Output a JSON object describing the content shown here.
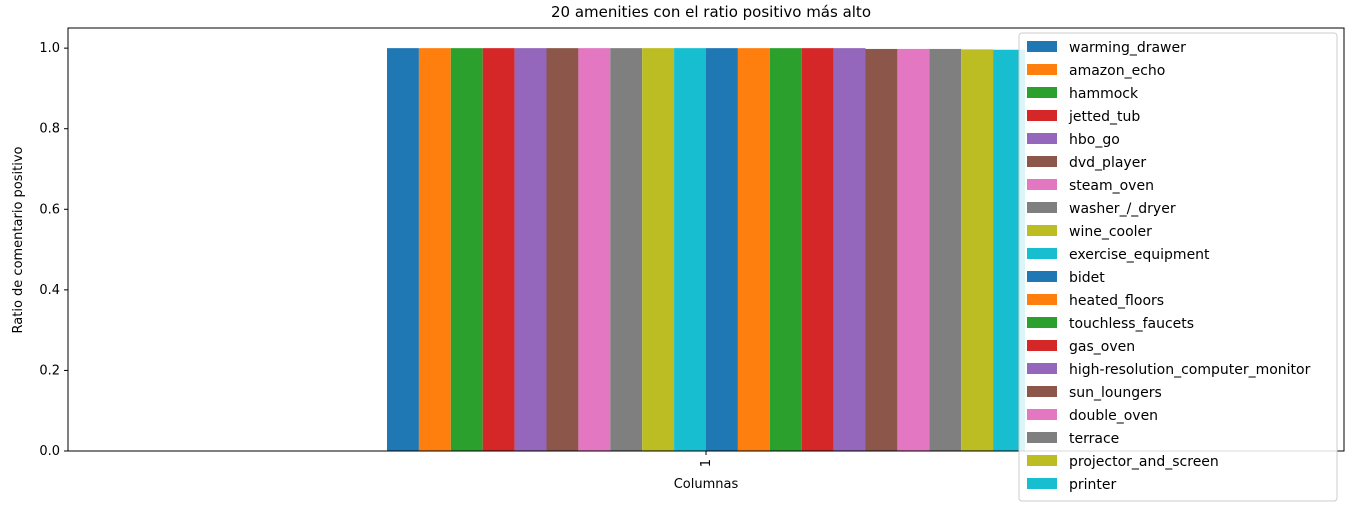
{
  "chart_data": {
    "type": "bar",
    "title": "20 amenities con el ratio positivo más alto",
    "xlabel": "Columnas",
    "ylabel": "Ratio de comentario positivo",
    "categories": [
      "1"
    ],
    "ylim": [
      0,
      1.05
    ],
    "yticks": [
      "0.0",
      "0.2",
      "0.4",
      "0.6",
      "0.8",
      "1.0"
    ],
    "grid": false,
    "legend_position": "upper-right",
    "series": [
      {
        "name": "warming_drawer",
        "values": [
          1.0
        ],
        "color": "#1f77b4"
      },
      {
        "name": "amazon_echo",
        "values": [
          1.0
        ],
        "color": "#ff7f0e"
      },
      {
        "name": "hammock",
        "values": [
          1.0
        ],
        "color": "#2ca02c"
      },
      {
        "name": "jetted_tub",
        "values": [
          1.0
        ],
        "color": "#d62728"
      },
      {
        "name": "hbo_go",
        "values": [
          1.0
        ],
        "color": "#9467bd"
      },
      {
        "name": "dvd_player",
        "values": [
          1.0
        ],
        "color": "#8c564b"
      },
      {
        "name": "steam_oven",
        "values": [
          1.0
        ],
        "color": "#e377c2"
      },
      {
        "name": "washer_/_dryer",
        "values": [
          1.0
        ],
        "color": "#7f7f7f"
      },
      {
        "name": "wine_cooler",
        "values": [
          1.0
        ],
        "color": "#bcbd22"
      },
      {
        "name": "exercise_equipment",
        "values": [
          1.0
        ],
        "color": "#17becf"
      },
      {
        "name": "bidet",
        "values": [
          1.0
        ],
        "color": "#1f77b4"
      },
      {
        "name": "heated_floors",
        "values": [
          1.0
        ],
        "color": "#ff7f0e"
      },
      {
        "name": "touchless_faucets",
        "values": [
          1.0
        ],
        "color": "#2ca02c"
      },
      {
        "name": "gas_oven",
        "values": [
          1.0
        ],
        "color": "#d62728"
      },
      {
        "name": "high-resolution_computer_monitor",
        "values": [
          1.0
        ],
        "color": "#9467bd"
      },
      {
        "name": "sun_loungers",
        "values": [
          0.998
        ],
        "color": "#8c564b"
      },
      {
        "name": "double_oven",
        "values": [
          0.998
        ],
        "color": "#e377c2"
      },
      {
        "name": "terrace",
        "values": [
          0.998
        ],
        "color": "#7f7f7f"
      },
      {
        "name": "projector_and_screen",
        "values": [
          0.997
        ],
        "color": "#bcbd22"
      },
      {
        "name": "printer",
        "values": [
          0.996
        ],
        "color": "#17becf"
      }
    ]
  }
}
